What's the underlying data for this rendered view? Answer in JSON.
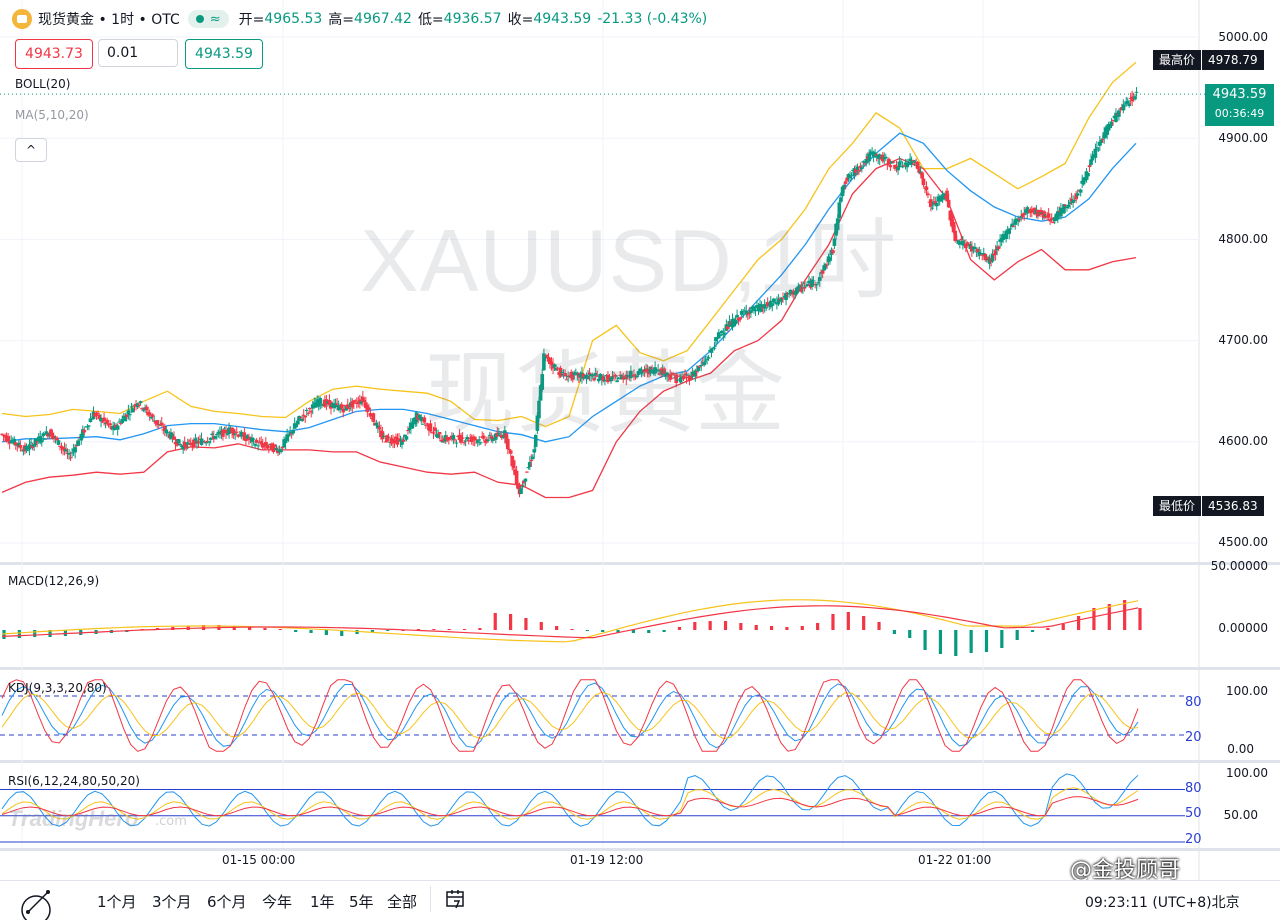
{
  "header": {
    "title": "现货黄金 • 1时 • OTC",
    "status_wave": "≈",
    "ohlc": [
      {
        "label": "开=",
        "value": "4965.53"
      },
      {
        "label": "高=",
        "value": "4967.42"
      },
      {
        "label": "低=",
        "value": "4936.57"
      },
      {
        "label": "收=",
        "value": "4943.59"
      }
    ],
    "change": "-21.33 (-0.43%)"
  },
  "trade": {
    "sell": "4943.73",
    "qty": "0.01",
    "buy": "4943.59"
  },
  "indicators": {
    "boll": "BOLL(20)",
    "ma": "MA(5,10,20)",
    "collapse": "^",
    "macd": "MACD(12,26,9)",
    "kdj": "KDJ(9,3,3,20,80)",
    "rsi": "RSI(6,12,24,80,50,20)"
  },
  "badges": {
    "high_label": "最高价",
    "high_value": "4978.79",
    "low_label": "最低价",
    "low_value": "4536.83",
    "current_price": "4943.59",
    "countdown": "00:36:49"
  },
  "price_axis": [
    "5000.00",
    "4900.00",
    "4800.00",
    "4700.00",
    "4600.00",
    "4500.00"
  ],
  "macd_axis": [
    "50.00000",
    "0.00000"
  ],
  "kdj_axis": [
    "100.00",
    "80",
    "20",
    "0.00"
  ],
  "rsi_axis": [
    "100.00",
    "80",
    "50",
    "50.00",
    "20"
  ],
  "time_axis": [
    "01-15 00:00",
    "01-19 12:00",
    "01-22 01:00"
  ],
  "watermark": {
    "symbol": "XAUUSD,1时",
    "name": "现货黄金"
  },
  "tv_watermark": {
    "name": "TradingHero",
    "suffix": ".com"
  },
  "ranges": [
    "1个月",
    "3个月",
    "6个月",
    "今年",
    "1年",
    "5年",
    "全部"
  ],
  "footer": {
    "time": "09:23:11 (UTC+8)北京",
    "weibo": "@金投顾哥"
  },
  "colors": {
    "up": "#089981",
    "down": "#f23645",
    "boll_upper": "#f7c31a",
    "boll_mid": "#2196f3",
    "boll_lower": "#f23645",
    "level": "#2a3fd1"
  },
  "chart_data": {
    "type": "candlestick",
    "symbol": "XAUUSD",
    "interval": "1时",
    "ylim": [
      4490,
      5020
    ],
    "price_points": [
      {
        "t": 0,
        "c": 4608
      },
      {
        "t": 10,
        "c": 4592
      },
      {
        "t": 20,
        "c": 4610
      },
      {
        "t": 28,
        "c": 4585
      },
      {
        "t": 38,
        "c": 4628
      },
      {
        "t": 46,
        "c": 4612
      },
      {
        "t": 56,
        "c": 4640
      },
      {
        "t": 64,
        "c": 4618
      },
      {
        "t": 74,
        "c": 4596
      },
      {
        "t": 84,
        "c": 4602
      },
      {
        "t": 94,
        "c": 4612
      },
      {
        "t": 104,
        "c": 4599
      },
      {
        "t": 114,
        "c": 4592
      },
      {
        "t": 122,
        "c": 4622
      },
      {
        "t": 130,
        "c": 4640
      },
      {
        "t": 140,
        "c": 4633
      },
      {
        "t": 148,
        "c": 4642
      },
      {
        "t": 156,
        "c": 4604
      },
      {
        "t": 164,
        "c": 4600
      },
      {
        "t": 170,
        "c": 4626
      },
      {
        "t": 180,
        "c": 4603
      },
      {
        "t": 190,
        "c": 4603
      },
      {
        "t": 198,
        "c": 4602
      },
      {
        "t": 206,
        "c": 4608
      },
      {
        "t": 212,
        "c": 4550
      },
      {
        "t": 218,
        "c": 4592
      },
      {
        "t": 222,
        "c": 4685
      },
      {
        "t": 230,
        "c": 4665
      },
      {
        "t": 240,
        "c": 4665
      },
      {
        "t": 250,
        "c": 4662
      },
      {
        "t": 260,
        "c": 4668
      },
      {
        "t": 268,
        "c": 4672
      },
      {
        "t": 276,
        "c": 4662
      },
      {
        "t": 282,
        "c": 4665
      },
      {
        "t": 288,
        "c": 4680
      },
      {
        "t": 294,
        "c": 4708
      },
      {
        "t": 304,
        "c": 4728
      },
      {
        "t": 314,
        "c": 4735
      },
      {
        "t": 324,
        "c": 4748
      },
      {
        "t": 334,
        "c": 4760
      },
      {
        "t": 340,
        "c": 4790
      },
      {
        "t": 344,
        "c": 4855
      },
      {
        "t": 350,
        "c": 4870
      },
      {
        "t": 356,
        "c": 4885
      },
      {
        "t": 366,
        "c": 4872
      },
      {
        "t": 374,
        "c": 4878
      },
      {
        "t": 380,
        "c": 4832
      },
      {
        "t": 386,
        "c": 4845
      },
      {
        "t": 390,
        "c": 4800
      },
      {
        "t": 398,
        "c": 4790
      },
      {
        "t": 404,
        "c": 4778
      },
      {
        "t": 412,
        "c": 4812
      },
      {
        "t": 420,
        "c": 4830
      },
      {
        "t": 430,
        "c": 4820
      },
      {
        "t": 440,
        "c": 4845
      },
      {
        "t": 446,
        "c": 4880
      },
      {
        "t": 452,
        "c": 4910
      },
      {
        "t": 458,
        "c": 4930
      },
      {
        "t": 464,
        "c": 4944
      }
    ],
    "bollinger": {
      "upper": [
        4628,
        4625,
        4627,
        4632,
        4630,
        4628,
        4640,
        4650,
        4635,
        4630,
        4628,
        4625,
        4624,
        4640,
        4652,
        4655,
        4652,
        4650,
        4648,
        4640,
        4622,
        4621,
        4625,
        4615,
        4625,
        4700,
        4715,
        4688,
        4680,
        4690,
        4720,
        4750,
        4780,
        4800,
        4830,
        4870,
        4895,
        4925,
        4910,
        4870,
        4870,
        4880,
        4865,
        4850,
        4862,
        4875,
        4920,
        4955,
        4975
      ],
      "mid": [
        4600,
        4603,
        4603,
        4604,
        4605,
        4602,
        4608,
        4616,
        4618,
        4618,
        4615,
        4612,
        4610,
        4614,
        4622,
        4630,
        4632,
        4632,
        4628,
        4622,
        4616,
        4610,
        4607,
        4600,
        4605,
        4625,
        4640,
        4655,
        4665,
        4670,
        4690,
        4715,
        4740,
        4765,
        4795,
        4830,
        4860,
        4885,
        4905,
        4895,
        4868,
        4848,
        4832,
        4822,
        4818,
        4822,
        4840,
        4870,
        4895
      ],
      "lower": [
        4550,
        4560,
        4565,
        4567,
        4570,
        4568,
        4570,
        4590,
        4595,
        4594,
        4598,
        4592,
        4592,
        4592,
        4590,
        4590,
        4580,
        4575,
        4570,
        4568,
        4570,
        4560,
        4557,
        4545,
        4545,
        4552,
        4600,
        4630,
        4650,
        4660,
        4668,
        4690,
        4700,
        4720,
        4760,
        4795,
        4845,
        4870,
        4880,
        4870,
        4840,
        4780,
        4760,
        4778,
        4790,
        4770,
        4770,
        4778,
        4782
      ]
    },
    "macd": {
      "ylim": [
        -30,
        55
      ],
      "hist": [
        -9,
        -8,
        -7,
        -7,
        -6,
        -5,
        -4,
        -3,
        -2,
        1,
        2,
        3,
        4,
        5,
        5,
        4,
        3,
        2,
        1,
        -2,
        -3,
        -5,
        -6,
        -4,
        -2,
        -1,
        0,
        1,
        1,
        1,
        1,
        2,
        17,
        16,
        12,
        8,
        4,
        1,
        -1,
        -2,
        -3,
        -3,
        -3,
        -2,
        3,
        8,
        9,
        9,
        7,
        5,
        4,
        3,
        4,
        7,
        16,
        18,
        14,
        8,
        -4,
        -8,
        -20,
        -24,
        -26,
        -23,
        -22,
        -18,
        -10,
        -2,
        2,
        6,
        14,
        22,
        26,
        30,
        22
      ]
    },
    "kdj": {
      "ylim": [
        0,
        100
      ],
      "levels": [
        20,
        80
      ]
    },
    "rsi": {
      "ylim": [
        0,
        100
      ],
      "levels": [
        80,
        50,
        20
      ]
    }
  }
}
